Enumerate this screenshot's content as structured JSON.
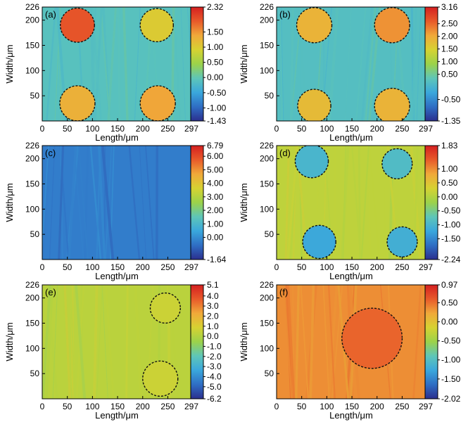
{
  "chart_data": [
    {
      "type": "heatmap",
      "panel": "(a)",
      "xlabel": "Length/μm",
      "ylabel": "Width/μm",
      "xlim": [
        0,
        297
      ],
      "ylim": [
        0,
        226
      ],
      "xticks": [
        "0",
        "50",
        "100",
        "150",
        "200",
        "250",
        "297"
      ],
      "yticks": [
        "50",
        "100",
        "150",
        "200",
        "226"
      ],
      "colorbar_ticks": [
        "2.32",
        "1.50",
        "1.00",
        "0.50",
        "0.00",
        "-0.50",
        "-1.00",
        "-1.43"
      ],
      "colorbar_range": [
        -1.43,
        2.32
      ],
      "background_value": -0.1,
      "features": [
        {
          "cx": 70,
          "cy": 190,
          "r": 34,
          "value": 1.9
        },
        {
          "cx": 228,
          "cy": 190,
          "r": 33,
          "value": 1.0
        },
        {
          "cx": 70,
          "cy": 35,
          "r": 35,
          "value": 1.3
        },
        {
          "cx": 230,
          "cy": 35,
          "r": 35,
          "value": 1.4
        }
      ]
    },
    {
      "type": "heatmap",
      "panel": "(b)",
      "xlabel": "Length/μm",
      "ylabel": "Width/μm",
      "xlim": [
        0,
        297
      ],
      "ylim": [
        0,
        226
      ],
      "xticks": [
        "0",
        "50",
        "100",
        "150",
        "200",
        "250",
        "297"
      ],
      "yticks": [
        "50",
        "100",
        "150",
        "200",
        "226"
      ],
      "colorbar_ticks": [
        "3.16",
        "2.50",
        "2.00",
        "1.50",
        "1.00",
        "0.50",
        "-0.50",
        "-1.35"
      ],
      "colorbar_range": [
        -1.35,
        3.16
      ],
      "background_value": 0.2,
      "features": [
        {
          "cx": 75,
          "cy": 190,
          "r": 35,
          "value": 1.9
        },
        {
          "cx": 230,
          "cy": 190,
          "r": 35,
          "value": 2.2
        },
        {
          "cx": 75,
          "cy": 30,
          "r": 33,
          "value": 1.8
        },
        {
          "cx": 230,
          "cy": 30,
          "r": 35,
          "value": 1.9
        }
      ]
    },
    {
      "type": "heatmap",
      "panel": "(c)",
      "xlabel": "Length/μm",
      "ylabel": "Width/μm",
      "xlim": [
        0,
        297
      ],
      "ylim": [
        0,
        226
      ],
      "xticks": [
        "0",
        "50",
        "100",
        "150",
        "200",
        "250",
        "297"
      ],
      "yticks": [
        "50",
        "100",
        "150",
        "200",
        "226"
      ],
      "colorbar_ticks": [
        "6.79",
        "6.00",
        "5.00",
        "4.00",
        "3.00",
        "2.00",
        "1.00",
        "0.00",
        "-1.64"
      ],
      "colorbar_range": [
        -1.64,
        6.79
      ],
      "background_value": -0.3,
      "features": []
    },
    {
      "type": "heatmap",
      "panel": "(d)",
      "xlabel": "Length/μm",
      "ylabel": "Width/μm",
      "xlim": [
        0,
        297
      ],
      "ylim": [
        0,
        226
      ],
      "xticks": [
        "0",
        "50",
        "100",
        "150",
        "200",
        "250",
        "297"
      ],
      "yticks": [
        "50",
        "100",
        "150",
        "200",
        "226"
      ],
      "colorbar_ticks": [
        "1.83",
        "1.00",
        "0.50",
        "0.00",
        "-0.50",
        "-1.00",
        "-1.50",
        "-2.24"
      ],
      "colorbar_range": [
        -2.24,
        1.83
      ],
      "background_value": 0.1,
      "features": [
        {
          "cx": 70,
          "cy": 195,
          "r": 33,
          "value": -1.0
        },
        {
          "cx": 240,
          "cy": 190,
          "r": 30,
          "value": -0.9
        },
        {
          "cx": 85,
          "cy": 35,
          "r": 33,
          "value": -1.2
        },
        {
          "cx": 250,
          "cy": 35,
          "r": 30,
          "value": -1.1
        }
      ]
    },
    {
      "type": "heatmap",
      "panel": "(e)",
      "xlabel": "Length/μm",
      "ylabel": "Width/μm",
      "xlim": [
        0,
        297
      ],
      "ylim": [
        0,
        226
      ],
      "xticks": [
        "0",
        "50",
        "100",
        "150",
        "200",
        "250",
        "297"
      ],
      "yticks": [
        "50",
        "100",
        "150",
        "200",
        "226"
      ],
      "colorbar_ticks": [
        "5.1",
        "4.0",
        "3.0",
        "2.0",
        "1.0",
        "0.0",
        "-1.0",
        "-2.0",
        "-3.0",
        "-4.0",
        "-5.0",
        "-6.2"
      ],
      "colorbar_range": [
        -6.2,
        5.1
      ],
      "background_value": 0.2,
      "features": [
        {
          "cx": 245,
          "cy": 180,
          "r": 30,
          "value": 0.6
        },
        {
          "cx": 235,
          "cy": 40,
          "r": 35,
          "value": 0.6
        }
      ]
    },
    {
      "type": "heatmap",
      "panel": "(f)",
      "xlabel": "Length/μm",
      "ylabel": "Width/μm",
      "xlim": [
        0,
        297
      ],
      "ylim": [
        0,
        226
      ],
      "xticks": [
        "0",
        "50",
        "100",
        "150",
        "200",
        "250",
        "297"
      ],
      "yticks": [
        "50",
        "100",
        "150",
        "200",
        "226"
      ],
      "colorbar_ticks": [
        "0.97",
        "0.50",
        "0.00",
        "-0.50",
        "-1.00",
        "-1.50",
        "-2.02"
      ],
      "colorbar_range": [
        -2.02,
        0.97
      ],
      "background_value": 0.35,
      "features": [
        {
          "cx": 190,
          "cy": 120,
          "r": 60,
          "value": 0.55
        }
      ]
    }
  ],
  "colors": {
    "scale": [
      "#2b2f8e",
      "#2f6ec4",
      "#3aa7dc",
      "#5ec6b8",
      "#9bd24a",
      "#d6d232",
      "#f0a93a",
      "#e85a2a",
      "#d42020"
    ]
  }
}
